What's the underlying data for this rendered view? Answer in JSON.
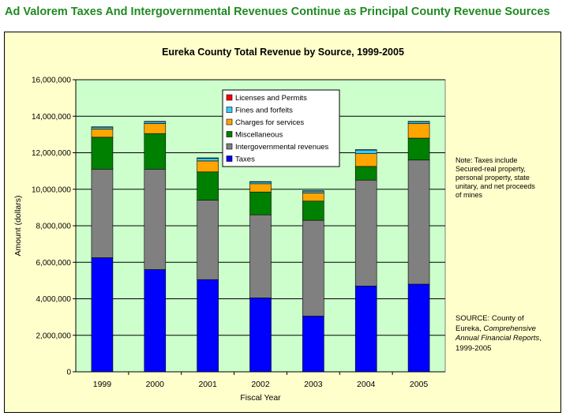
{
  "headline": "Ad Valorem Taxes And Intergovernmental Revenues Continue as Principal County Revenue Sources",
  "note": "Note: Taxes include Secured-real property, personal property, state unitary, and net proceeds of mines",
  "source": {
    "prefix": "SOURCE: County of Eureka,",
    "publication": "Comprehensive Annual Financial Reports",
    "suffix": ", 1999-2005"
  },
  "chart_data": {
    "type": "bar",
    "stacked": true,
    "title": "Eureka County Total Revenue by Source, 1999-2005",
    "xlabel": "Fiscal Year",
    "ylabel": "Amount (dollars)",
    "ylim": [
      0,
      16000000
    ],
    "yticks": [
      0,
      2000000,
      4000000,
      6000000,
      8000000,
      10000000,
      12000000,
      14000000,
      16000000
    ],
    "ytick_labels": [
      "0",
      "2,000,000",
      "4,000,000",
      "6,000,000",
      "8,000,000",
      "10,000,000",
      "12,000,000",
      "14,000,000",
      "16,000,000"
    ],
    "categories": [
      "1999",
      "2000",
      "2001",
      "2002",
      "2003",
      "2004",
      "2005"
    ],
    "grid": true,
    "legend_position": "top-center",
    "series": [
      {
        "name": "Taxes",
        "color": "#0000ff",
        "values": [
          6250000,
          5600000,
          5050000,
          4050000,
          3050000,
          4700000,
          4800000
        ]
      },
      {
        "name": "Intergovernmental revenues",
        "color": "#808080",
        "values": [
          4850000,
          5500000,
          4350000,
          4550000,
          5250000,
          5800000,
          6800000
        ]
      },
      {
        "name": "Miscellaneous",
        "color": "#008000",
        "values": [
          1750000,
          1950000,
          1550000,
          1250000,
          1050000,
          750000,
          1200000
        ]
      },
      {
        "name": "Charges for services",
        "color": "#ffa500",
        "values": [
          450000,
          550000,
          600000,
          450000,
          450000,
          700000,
          800000
        ]
      },
      {
        "name": "Fines and forfeits",
        "color": "#33ccff",
        "values": [
          100000,
          100000,
          150000,
          100000,
          100000,
          200000,
          100000
        ]
      },
      {
        "name": "Licenses and Permits",
        "color": "#ff0000",
        "values": [
          20000,
          20000,
          20000,
          20000,
          20000,
          20000,
          20000
        ]
      }
    ]
  }
}
